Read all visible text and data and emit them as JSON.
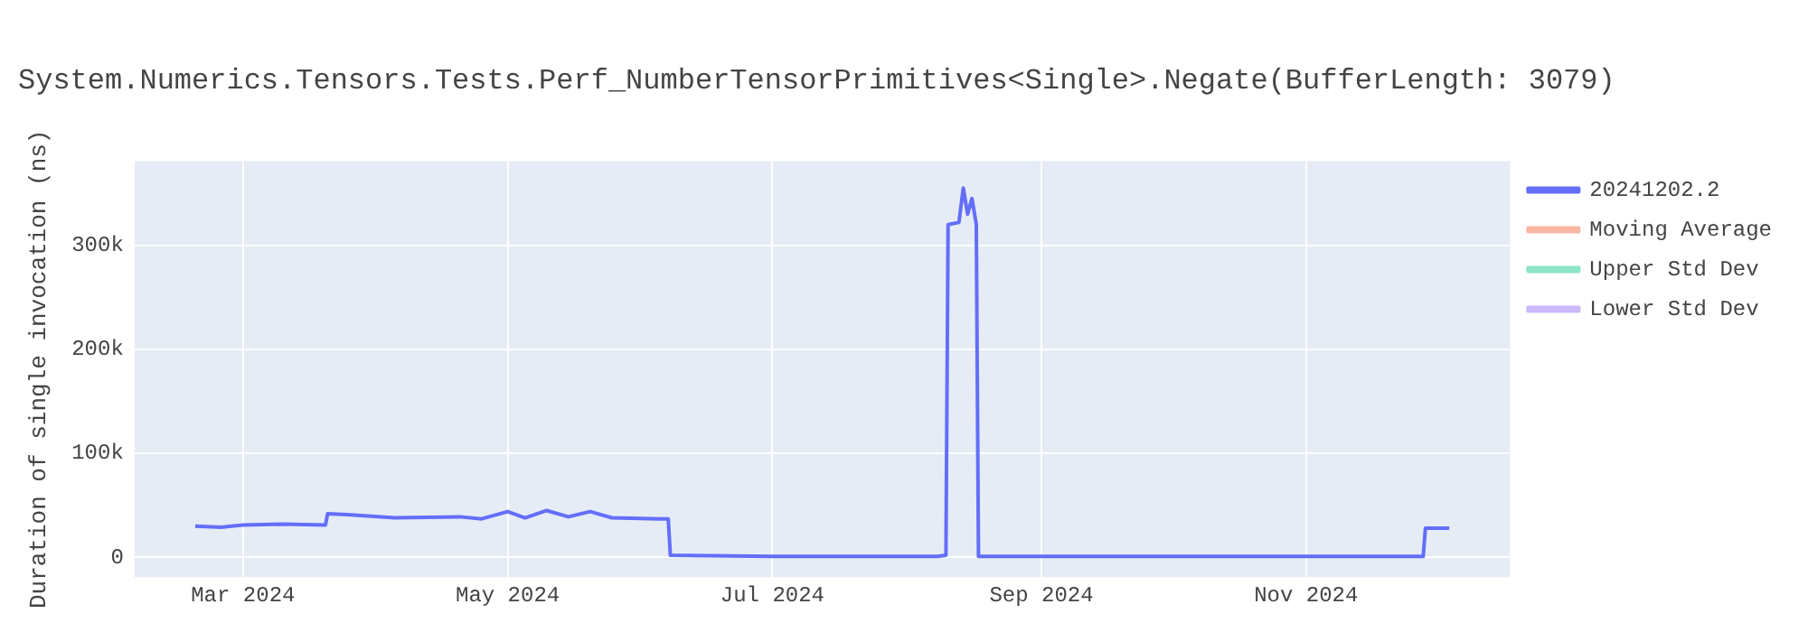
{
  "chart_data": {
    "type": "line",
    "title": "System.Numerics.Tensors.Tests.Perf_NumberTensorPrimitives<Single>.Negate(BufferLength: 3079)",
    "ylabel": "Duration of single invocation (ns)",
    "xlim": [
      "2024-02-05",
      "2024-12-18"
    ],
    "xticks": [
      {
        "value": "2024-03-01",
        "label": "Mar 2024"
      },
      {
        "value": "2024-05-01",
        "label": "May 2024"
      },
      {
        "value": "2024-07-01",
        "label": "Jul 2024"
      },
      {
        "value": "2024-09-01",
        "label": "Sep 2024"
      },
      {
        "value": "2024-11-01",
        "label": "Nov 2024"
      }
    ],
    "ylim": [
      -19000,
      381000
    ],
    "yticks": [
      0,
      {
        "value": 100000,
        "label": "100k"
      },
      {
        "value": 200000,
        "label": "200k"
      },
      {
        "value": 300000,
        "label": "300k"
      }
    ],
    "grid": true,
    "legend": "top right",
    "marker": "none",
    "line_style": "solid",
    "x": [
      "2024-02-19",
      "2024-02-25",
      "2024-03-01",
      "2024-03-10",
      "2024-03-20",
      "2024-03-20T12:00",
      "2024-03-25",
      "2024-04-05",
      "2024-04-20",
      "2024-04-25",
      "2024-05-01",
      "2024-05-05",
      "2024-05-10",
      "2024-05-15",
      "2024-05-20",
      "2024-05-25",
      "2024-06-05",
      "2024-06-07",
      "2024-06-07T12:00",
      "2024-07-01",
      "2024-08-08",
      "2024-08-10",
      "2024-08-10T12:00",
      "2024-08-13",
      "2024-08-14",
      "2024-08-15",
      "2024-08-16",
      "2024-08-17",
      "2024-08-17T12:00",
      "2024-09-01",
      "2024-11-28",
      "2024-11-28T12:00",
      "2024-12-04"
    ],
    "series": [
      {
        "name": "20241202.2",
        "color": "#636efa",
        "values": [
          30000,
          29000,
          31000,
          32000,
          31000,
          42000,
          41000,
          38000,
          39000,
          37000,
          44000,
          38000,
          45000,
          39000,
          44000,
          38000,
          37000,
          37000,
          2000,
          1000,
          1000,
          2000,
          320000,
          322000,
          355000,
          330000,
          345000,
          320000,
          1000,
          1000,
          1000,
          28000,
          28000
        ]
      },
      {
        "name": "Moving Average",
        "color": "#f9b6a3",
        "values": [
          null,
          null,
          null,
          null,
          null,
          null,
          null,
          null,
          null,
          null,
          null,
          null,
          null,
          null,
          null,
          null,
          null,
          null,
          null,
          null,
          null,
          null,
          null,
          null,
          null,
          null,
          null,
          null,
          null,
          null,
          null,
          null,
          null
        ]
      },
      {
        "name": "Upper Std Dev",
        "color": "#8be6c6",
        "values": [
          null,
          null,
          null,
          null,
          null,
          null,
          null,
          null,
          null,
          null,
          null,
          null,
          null,
          null,
          null,
          null,
          null,
          null,
          null,
          null,
          null,
          null,
          null,
          null,
          null,
          null,
          null,
          null,
          null,
          null,
          null,
          null,
          null
        ]
      },
      {
        "name": "Lower Std Dev",
        "color": "#cbb8f9",
        "values": [
          null,
          null,
          null,
          null,
          null,
          null,
          null,
          null,
          null,
          null,
          null,
          null,
          null,
          null,
          null,
          null,
          null,
          null,
          null,
          null,
          null,
          null,
          null,
          null,
          null,
          null,
          null,
          null,
          null,
          null,
          null,
          null,
          null
        ]
      }
    ]
  }
}
